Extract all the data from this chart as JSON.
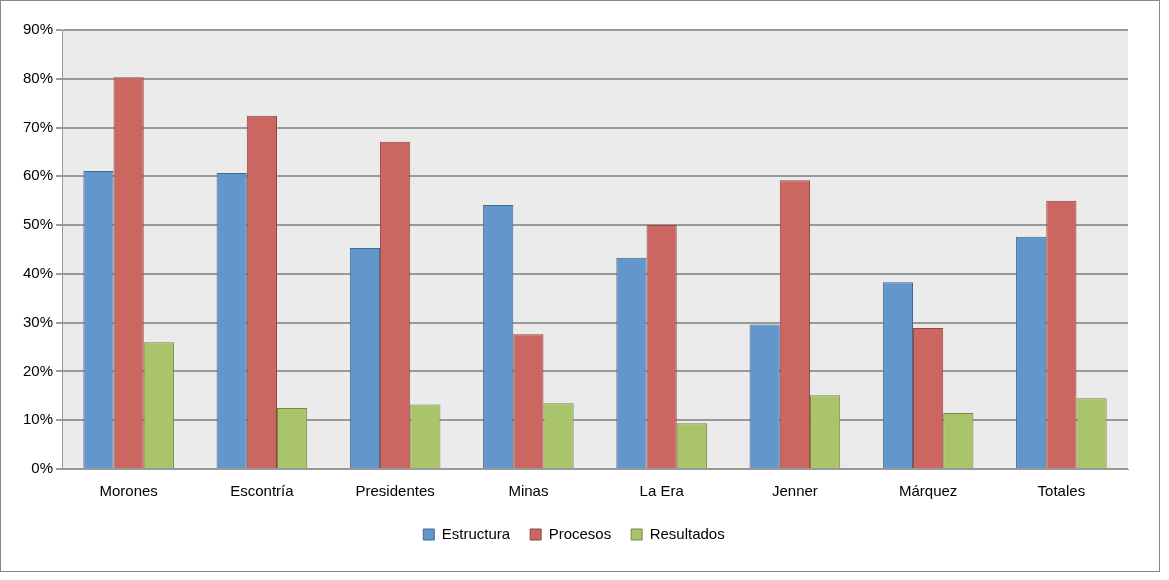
{
  "chart_data": {
    "type": "bar",
    "categories": [
      "Morones",
      "Escontría",
      "Presidentes",
      "Minas",
      "La Era",
      "Jenner",
      "Márquez",
      "Totales"
    ],
    "series": [
      {
        "name": "Estructura",
        "color": "#6396ca",
        "values": [
          61.1,
          60.7,
          45.3,
          54.1,
          43.3,
          29.6,
          38.3,
          47.6
        ]
      },
      {
        "name": "Procesos",
        "color": "#cc6660",
        "values": [
          80.3,
          72.4,
          67.1,
          27.6,
          50.0,
          59.2,
          28.9,
          55.0
        ]
      },
      {
        "name": "Resultados",
        "color": "#a9c46a",
        "values": [
          26.0,
          12.5,
          13.2,
          13.5,
          9.4,
          15.1,
          11.5,
          14.5
        ]
      }
    ],
    "ylim": [
      0,
      90
    ],
    "yticks": [
      {
        "value": 0,
        "label": "0%"
      },
      {
        "value": 10,
        "label": "10%"
      },
      {
        "value": 20,
        "label": "20%"
      },
      {
        "value": 30,
        "label": "30%"
      },
      {
        "value": 40,
        "label": "40%"
      },
      {
        "value": 50,
        "label": "50%"
      },
      {
        "value": 60,
        "label": "60%"
      },
      {
        "value": 70,
        "label": "70%"
      },
      {
        "value": 80,
        "label": "80%"
      },
      {
        "value": 90,
        "label": "90%"
      }
    ],
    "grid": "y",
    "legend": "bottom"
  }
}
